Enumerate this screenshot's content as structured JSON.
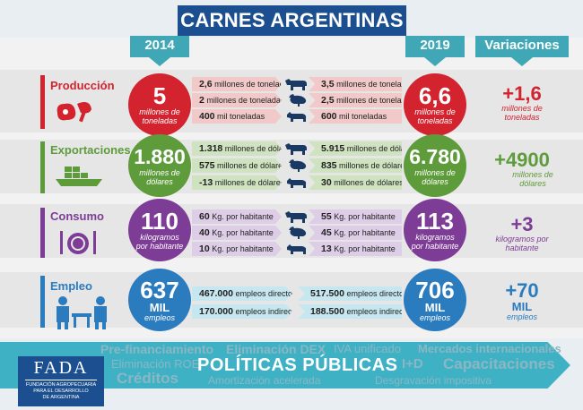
{
  "title": "CARNES ARGENTINAS",
  "year_left": "2014",
  "year_right": "2019",
  "variaciones_label": "Variaciones",
  "colors": {
    "produccion": "#d3232e",
    "exportaciones": "#5e9b3a",
    "consumo": "#7d3c95",
    "empleo": "#2b7bbf",
    "header": "#1b4f8f",
    "teal": "#3fa7b5"
  },
  "sections": {
    "produccion": {
      "label": "Producción",
      "left_value": "5",
      "left_unit": "millones de toneladas",
      "right_value": "6,6",
      "right_unit": "millones de toneladas",
      "var_value": "+1,6",
      "var_unit": "millones de toneladas",
      "rows": [
        {
          "animal": "cow-icon",
          "left_num": "2,6",
          "left_txt": "millones de toneladas",
          "right_num": "3,5",
          "right_txt": "millones de toneladas"
        },
        {
          "animal": "chicken-icon",
          "left_num": "2",
          "left_txt": "millones de toneladas",
          "right_num": "2,5",
          "right_txt": "millones de toneladas"
        },
        {
          "animal": "pig-icon",
          "left_num": "400",
          "left_txt": "mil toneladas",
          "right_num": "600",
          "right_txt": "mil toneladas"
        }
      ]
    },
    "exportaciones": {
      "label": "Exportaciones",
      "left_value": "1.880",
      "left_unit": "millones de dólares",
      "right_value": "6.780",
      "right_unit": "millones de dólares",
      "var_value": "+4900",
      "var_unit": "millones de dólares",
      "rows": [
        {
          "animal": "cow-icon",
          "left_num": "1.318",
          "left_txt": "millones de dólares",
          "right_num": "5.915",
          "right_txt": "millones de dólares"
        },
        {
          "animal": "chicken-icon",
          "left_num": "575",
          "left_txt": "millones de dólares",
          "right_num": "835",
          "right_txt": "millones de dólares"
        },
        {
          "animal": "pig-icon",
          "left_num": "-13",
          "left_txt": "millones de dólares",
          "right_num": "30",
          "right_txt": "millones de dólares"
        }
      ]
    },
    "consumo": {
      "label": "Consumo",
      "left_value": "110",
      "left_unit": "kilogramos por habitante",
      "right_value": "113",
      "right_unit": "kilogramos por habitante",
      "var_value": "+3",
      "var_unit": "kilogramos por habitante",
      "rows": [
        {
          "animal": "cow-icon",
          "left_num": "60",
          "left_txt": "Kg. por habitante",
          "right_num": "55",
          "right_txt": "Kg. por habitante"
        },
        {
          "animal": "chicken-icon",
          "left_num": "40",
          "left_txt": "Kg. por habitante",
          "right_num": "45",
          "right_txt": "Kg. por habitante"
        },
        {
          "animal": "pig-icon",
          "left_num": "10",
          "left_txt": "Kg. por habitante",
          "right_num": "13",
          "right_txt": "Kg. por habitante"
        }
      ]
    },
    "empleo": {
      "label": "Empleo",
      "left_value": "637",
      "left_mil": "MIL",
      "left_unit": "empleos",
      "right_value": "706",
      "right_mil": "MIL",
      "right_unit": "empleos",
      "var_value": "+70",
      "var_mil": "MIL",
      "var_unit": "empleos",
      "rows": [
        {
          "left_num": "467.000",
          "left_txt": "empleos directos",
          "right_num": "517.500",
          "right_txt": "empleos directos"
        },
        {
          "left_num": "170.000",
          "left_txt": "empleos indirectos",
          "right_num": "188.500",
          "right_txt": "empleos indirectos"
        }
      ]
    }
  },
  "policies": {
    "title": "POLÍTICAS PÚBLICAS",
    "words": [
      "Pre-financiamiento",
      "Eliminación DEX",
      "IVA unificado",
      "Mercados internacionales",
      "Eliminación ROE",
      "I+D",
      "Capacitaciones",
      "Créditos",
      "Amortización acelerada",
      "Desgravación impositiva"
    ]
  },
  "logo": {
    "name": "FADA",
    "line1": "FUNDACIÓN AGROPECUARIA",
    "line2": "PARA EL DESARROLLO",
    "line3": "DE ARGENTINA"
  }
}
